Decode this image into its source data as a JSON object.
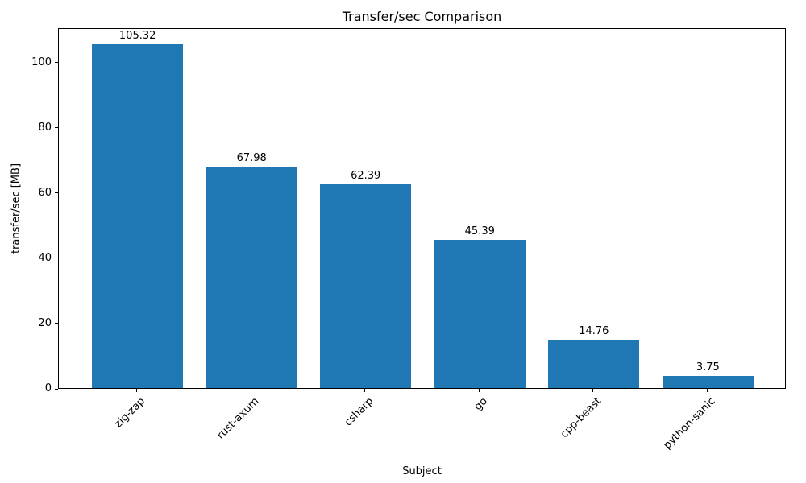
{
  "chart_data": {
    "type": "bar",
    "title": "Transfer/sec Comparison",
    "xlabel": "Subject",
    "ylabel": "transfer/sec [MB]",
    "categories": [
      "zig-zap",
      "rust-axum",
      "csharp",
      "go",
      "cpp-beast",
      "python-sanic"
    ],
    "values": [
      105.32,
      67.98,
      62.39,
      45.39,
      14.76,
      3.75
    ],
    "bar_labels": [
      "105.32",
      "67.98",
      "62.39",
      "45.39",
      "14.76",
      "3.75"
    ],
    "y_ticks": [
      0,
      20,
      40,
      60,
      80,
      100
    ],
    "ylim": [
      0,
      110.6
    ],
    "bar_width_fraction": 0.8,
    "bar_color": "#1f77b4",
    "background_color": "#ffffff",
    "axis_color": "#000000",
    "grid": false,
    "legend": false
  }
}
